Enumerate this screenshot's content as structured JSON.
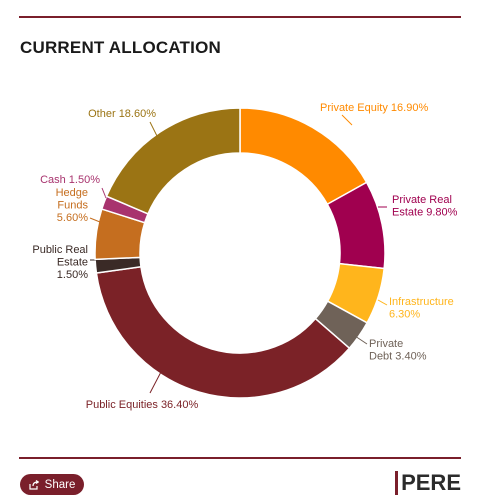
{
  "header": {
    "title": "CURRENT ALLOCATION"
  },
  "footer": {
    "share_label": "Share",
    "logo_text": "PERE"
  },
  "colors": {
    "accent": "#7a1f2b"
  },
  "chart_data": {
    "type": "pie",
    "variant": "donut",
    "title": "CURRENT ALLOCATION",
    "slices": [
      {
        "label": "Private Equity",
        "value": 16.9,
        "display": "16.90%",
        "color": "#ff8a00"
      },
      {
        "label": "Private Real Estate",
        "value": 9.8,
        "display": "9.80%",
        "color": "#a0004f"
      },
      {
        "label": "Infrastructure",
        "value": 6.3,
        "display": "6.30%",
        "color": "#ffb51c"
      },
      {
        "label": "Private Debt",
        "value": 3.4,
        "display": "3.40%",
        "color": "#6f6258"
      },
      {
        "label": "Public Equities",
        "value": 36.4,
        "display": "36.40%",
        "color": "#7b2227"
      },
      {
        "label": "Public Real Estate",
        "value": 1.5,
        "display": "1.50%",
        "color": "#3a2a26"
      },
      {
        "label": "Hedge Funds",
        "value": 5.6,
        "display": "5.60%",
        "color": "#c56e1f"
      },
      {
        "label": "Cash",
        "value": 1.5,
        "display": "1.50%",
        "color": "#a8336e"
      },
      {
        "label": "Other",
        "value": 18.6,
        "display": "18.60%",
        "color": "#9b7414"
      }
    ]
  }
}
